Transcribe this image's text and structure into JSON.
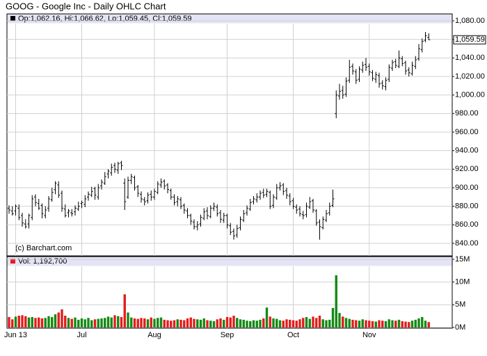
{
  "chart_data": {
    "type": "ohlc",
    "title": "GOOG - Google Inc - Daily OHLC Chart",
    "legend": "Op:1,062.16, Hi:1,066.62, Lo:1,059.45, Cl:1,059.59",
    "volume_legend": "Vol: 1,192,700",
    "last_label": "1,059.59",
    "credit": "(c) Barchart.com",
    "bar_color": "#000000",
    "up_color": "#138a13",
    "down_color": "#e41c1c",
    "grid": true,
    "categories": [
      null,
      null,
      "Jun 13",
      null,
      null,
      null,
      null,
      null,
      null,
      null,
      null,
      null,
      null,
      null,
      null,
      null,
      null,
      null,
      null,
      null,
      null,
      null,
      "Jul",
      null,
      null,
      null,
      null,
      null,
      null,
      null,
      null,
      null,
      null,
      null,
      null,
      null,
      null,
      null,
      null,
      null,
      null,
      null,
      null,
      null,
      "Aug",
      null,
      null,
      null,
      null,
      null,
      null,
      null,
      null,
      null,
      null,
      null,
      null,
      null,
      null,
      null,
      null,
      null,
      null,
      null,
      null,
      null,
      "Sep",
      null,
      null,
      null,
      null,
      null,
      null,
      null,
      null,
      null,
      null,
      null,
      null,
      null,
      null,
      null,
      null,
      null,
      null,
      null,
      "Oct",
      null,
      null,
      null,
      null,
      null,
      null,
      null,
      null,
      null,
      null,
      null,
      null,
      null,
      null,
      null,
      null,
      null,
      null,
      null,
      null,
      null,
      null,
      "Nov",
      null,
      null,
      null,
      null,
      null,
      null,
      null,
      null,
      null,
      null,
      null,
      null,
      null,
      null,
      null,
      null,
      null,
      null
    ],
    "open": [
      878,
      875,
      875,
      878,
      870,
      861,
      861,
      868,
      890,
      883,
      881,
      870,
      878,
      887,
      898,
      903,
      894,
      877,
      873,
      873,
      874,
      877,
      883,
      882,
      890,
      892,
      899,
      890,
      902,
      905,
      915,
      916,
      924,
      919,
      927,
      905,
      890,
      908,
      911,
      901,
      893,
      887,
      886,
      893,
      890,
      895,
      903,
      907,
      903,
      897,
      890,
      885,
      887,
      881,
      875,
      870,
      863,
      858,
      861,
      867,
      875,
      869,
      878,
      879,
      873,
      865,
      870,
      859,
      853,
      849,
      857,
      865,
      873,
      877,
      885,
      887,
      890,
      895,
      893,
      895,
      881,
      889,
      900,
      903,
      897,
      891,
      886,
      879,
      877,
      871,
      871,
      879,
      886,
      875,
      863,
      857,
      865,
      873,
      881,
      980,
      999,
      1005,
      1001,
      1016,
      1031,
      1025,
      1017,
      1027,
      1033,
      1031,
      1024,
      1017,
      1021,
      1013,
      1009,
      1017,
      1029,
      1036,
      1031,
      1039,
      1035,
      1027,
      1023,
      1031,
      1039,
      1049,
      1059,
      1062.16
    ],
    "high": [
      881,
      880,
      882,
      882,
      873,
      866,
      872,
      892,
      893,
      888,
      883,
      880,
      891,
      900,
      907,
      907,
      897,
      882,
      877,
      877,
      881,
      885,
      886,
      892,
      896,
      901,
      901,
      904,
      909,
      917,
      920,
      926,
      927,
      928,
      929,
      910,
      912,
      915,
      913,
      903,
      896,
      890,
      895,
      897,
      899,
      907,
      910,
      909,
      905,
      899,
      893,
      891,
      890,
      883,
      878,
      872,
      866,
      864,
      871,
      878,
      879,
      881,
      884,
      882,
      876,
      873,
      872,
      862,
      856,
      860,
      869,
      876,
      881,
      888,
      891,
      894,
      897,
      899,
      899,
      897,
      893,
      904,
      906,
      905,
      900,
      894,
      889,
      882,
      880,
      875,
      884,
      890,
      888,
      877,
      866,
      869,
      876,
      884,
      898,
      1005,
      1012,
      1010,
      1019,
      1038,
      1034,
      1028,
      1031,
      1036,
      1040,
      1034,
      1027,
      1025,
      1024,
      1016,
      1019,
      1033,
      1038,
      1039,
      1048,
      1042,
      1037,
      1030,
      1036,
      1042,
      1055,
      1061,
      1068,
      1066.62
    ],
    "low": [
      872,
      870,
      870,
      865,
      858,
      856,
      856,
      865,
      880,
      876,
      867,
      867,
      874,
      885,
      893,
      889,
      874,
      868,
      868,
      869,
      870,
      875,
      878,
      879,
      886,
      890,
      887,
      887,
      898,
      903,
      910,
      913,
      916,
      915,
      919,
      876,
      888,
      904,
      897,
      890,
      884,
      881,
      883,
      886,
      887,
      893,
      900,
      898,
      894,
      887,
      881,
      880,
      877,
      872,
      867,
      860,
      855,
      854,
      858,
      865,
      866,
      867,
      875,
      869,
      862,
      862,
      856,
      849,
      844,
      846,
      854,
      863,
      870,
      875,
      882,
      884,
      887,
      889,
      890,
      877,
      878,
      887,
      897,
      892,
      888,
      881,
      877,
      872,
      869,
      866,
      868,
      877,
      873,
      859,
      844,
      855,
      863,
      870,
      879,
      975,
      995,
      996,
      998,
      1013,
      1022,
      1012,
      1014,
      1024,
      1026,
      1021,
      1015,
      1013,
      1008,
      1006,
      1005,
      1014,
      1026,
      1029,
      1029,
      1031,
      1022,
      1020,
      1021,
      1028,
      1037,
      1046,
      1057,
      1059.45
    ],
    "close": [
      876,
      872,
      880,
      868,
      862,
      858,
      870,
      888,
      884,
      878,
      872,
      876,
      888,
      895,
      905,
      892,
      878,
      870,
      875,
      872,
      878,
      880,
      884,
      888,
      893,
      896,
      892,
      900,
      906,
      912,
      918,
      922,
      920,
      926,
      924,
      885,
      908,
      912,
      900,
      894,
      888,
      885,
      892,
      890,
      896,
      904,
      906,
      902,
      898,
      890,
      884,
      888,
      880,
      876,
      870,
      864,
      858,
      860,
      868,
      874,
      870,
      878,
      880,
      872,
      866,
      870,
      860,
      852,
      848,
      856,
      866,
      872,
      878,
      884,
      888,
      890,
      894,
      892,
      896,
      880,
      890,
      900,
      902,
      896,
      892,
      885,
      880,
      876,
      872,
      870,
      880,
      885,
      876,
      862,
      858,
      866,
      872,
      880,
      888,
      1000,
      1004,
      1000,
      1015,
      1030,
      1026,
      1016,
      1028,
      1032,
      1030,
      1025,
      1018,
      1022,
      1012,
      1010,
      1016,
      1030,
      1035,
      1032,
      1040,
      1034,
      1026,
      1024,
      1032,
      1038,
      1050,
      1058,
      1064,
      1059.59
    ],
    "volume": [
      2300000,
      1800000,
      2400000,
      2600000,
      2700000,
      2500000,
      2200000,
      2300000,
      2100000,
      2200000,
      2000000,
      2100000,
      2500000,
      2300000,
      2900000,
      3300000,
      4000000,
      2600000,
      2100000,
      1900000,
      2200000,
      1700000,
      2000000,
      1800000,
      2100000,
      1600000,
      1800000,
      1900000,
      2000000,
      2100000,
      2400000,
      2200000,
      2700000,
      2500000,
      2300000,
      7300000,
      3300000,
      2200000,
      2000000,
      1900000,
      2100000,
      2000000,
      1800000,
      2200000,
      1900000,
      2100000,
      2200000,
      1700000,
      1600000,
      1500000,
      1600000,
      1800000,
      1700000,
      1600000,
      2000000,
      2200000,
      1900000,
      1800000,
      1700000,
      2000000,
      1600000,
      1500000,
      1400000,
      1800000,
      2000000,
      1700000,
      2300000,
      2200000,
      2600000,
      2100000,
      1800000,
      1700000,
      1500000,
      1400000,
      1600000,
      1500000,
      1700000,
      2000000,
      4400000,
      2400000,
      2000000,
      1900000,
      1600000,
      1500000,
      1800000,
      1700000,
      1600000,
      1500000,
      1800000,
      2100000,
      2300000,
      1900000,
      2400000,
      2100000,
      2600000,
      1800000,
      1600000,
      1700000,
      4300000,
      11500000,
      3200000,
      2400000,
      2100000,
      1900000,
      1700000,
      1600000,
      1500000,
      1800000,
      1600000,
      1500000,
      1400000,
      1300000,
      1600000,
      1500000,
      1400000,
      1800000,
      1600000,
      1500000,
      1700000,
      1400000,
      1300000,
      1200000,
      1500000,
      1700000,
      2000000,
      2300000,
      1500000,
      1192700
    ],
    "ylim": [
      840,
      1080
    ],
    "yticks": [
      {
        "value": 840,
        "label": "840.00"
      },
      {
        "value": 860,
        "label": "860.00"
      },
      {
        "value": 880,
        "label": "880.00"
      },
      {
        "value": 900,
        "label": "900.00"
      },
      {
        "value": 920,
        "label": "920.00"
      },
      {
        "value": 940,
        "label": "940.00"
      },
      {
        "value": 960,
        "label": "960.00"
      },
      {
        "value": 980,
        "label": "980.00"
      },
      {
        "value": 1000,
        "label": "1,000.00"
      },
      {
        "value": 1020,
        "label": "1,020.00"
      },
      {
        "value": 1040,
        "label": "1,040.00"
      },
      {
        "value": 1060,
        "label": "1,060.00"
      },
      {
        "value": 1080,
        "label": "1,080.00"
      }
    ],
    "volume_ylim": [
      0,
      15000000
    ],
    "volume_yticks": [
      {
        "value": 0,
        "label": "0M"
      },
      {
        "value": 5000000,
        "label": "5M"
      },
      {
        "value": 10000000,
        "label": "10M"
      },
      {
        "value": 15000000,
        "label": "15M"
      }
    ]
  }
}
